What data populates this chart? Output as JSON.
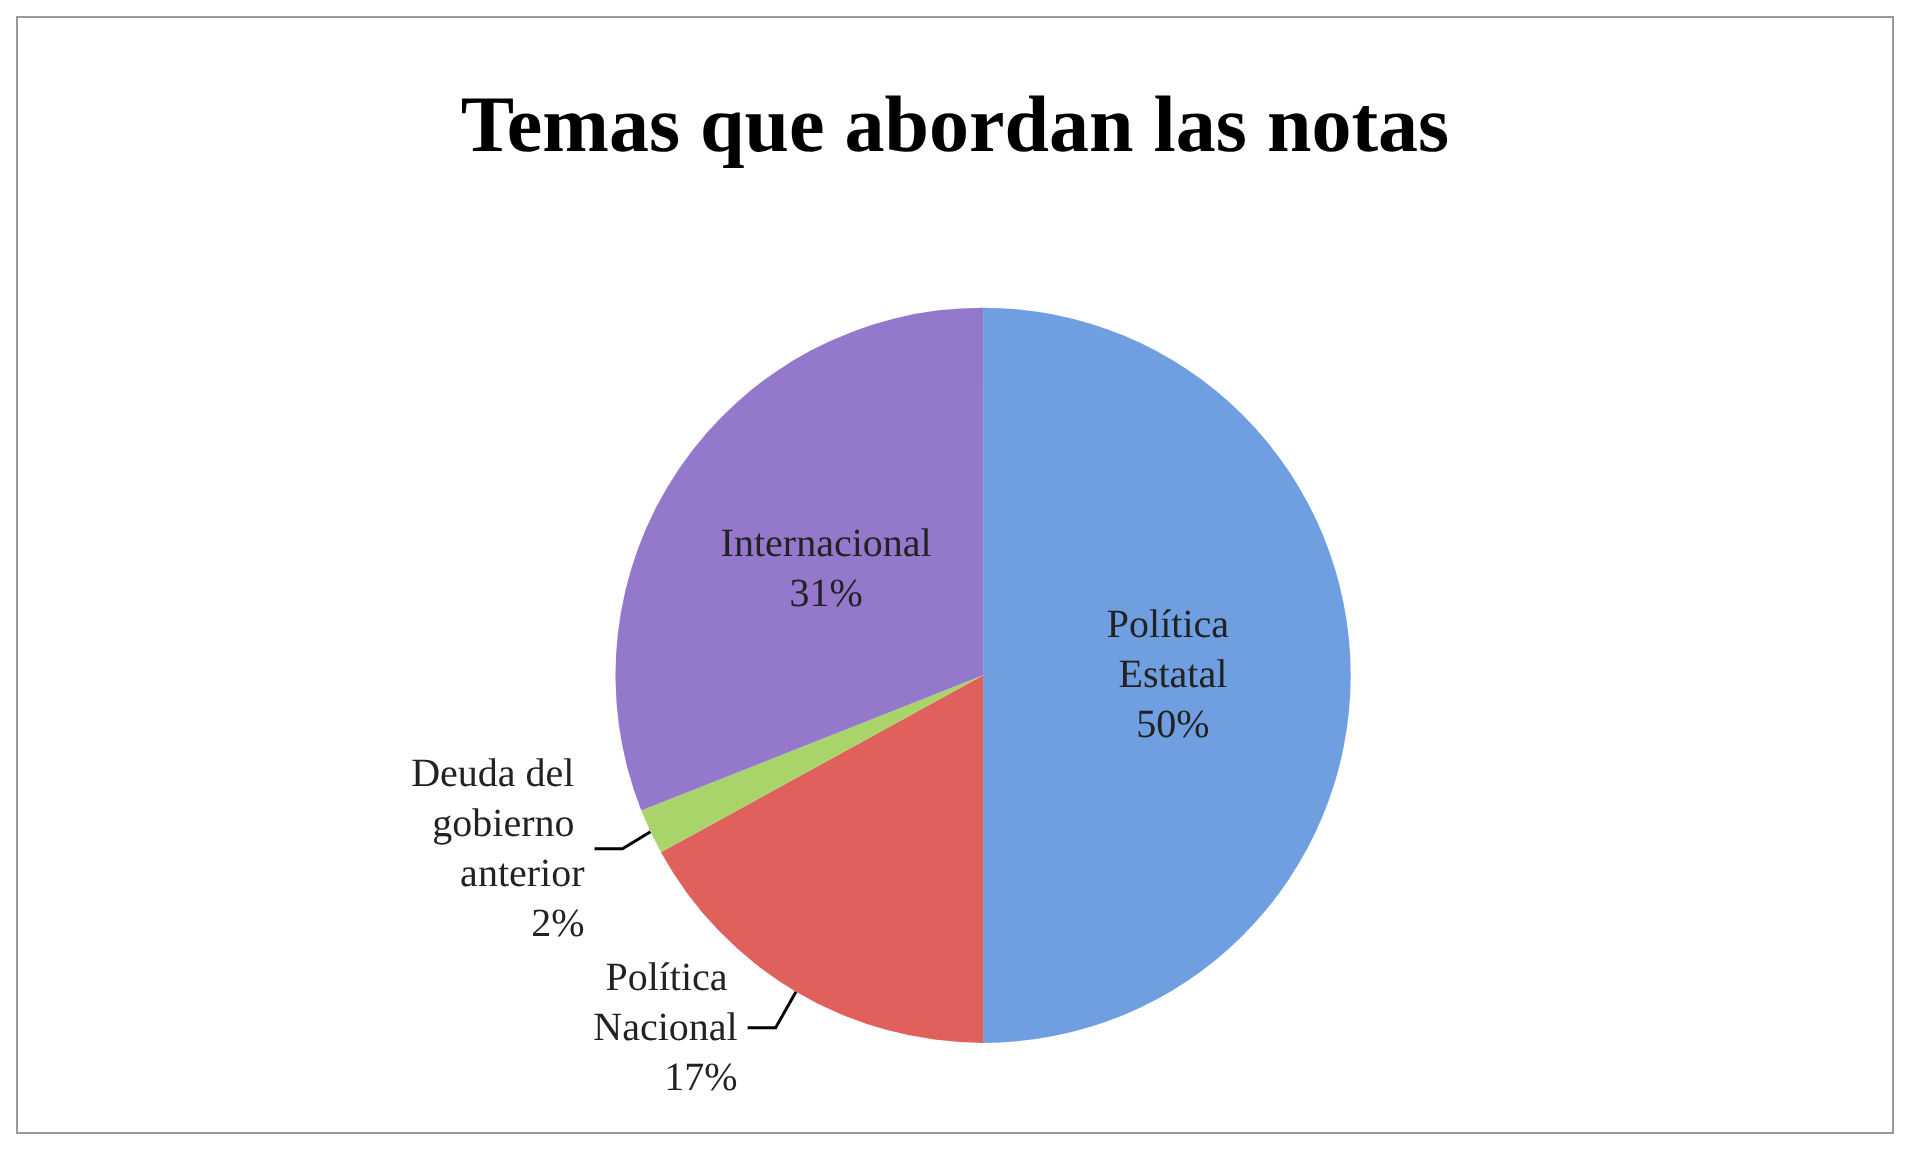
{
  "chart_data": {
    "type": "pie",
    "title": "Temas que abordan las notas",
    "categories": [
      "Política Estatal",
      "Política Nacional",
      "Deuda del gobierno anterior",
      "Internacional"
    ],
    "values": [
      50,
      17,
      2,
      31
    ],
    "value_labels": [
      "50%",
      "17%",
      "2%",
      "31%"
    ],
    "colors": [
      "#6f9fe0",
      "#e0605c",
      "#a9d46a",
      "#9478cc"
    ],
    "legend": false
  }
}
